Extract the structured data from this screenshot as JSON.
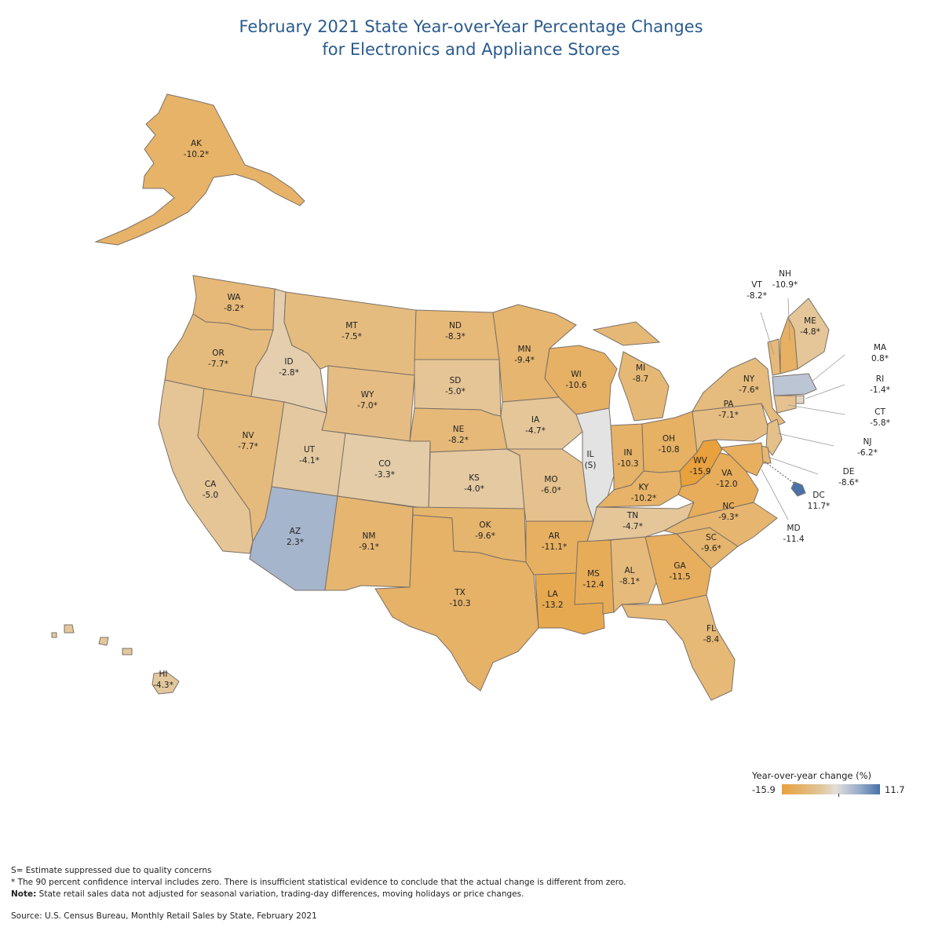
{
  "title_line1": "February 2021 State Year-over-Year Percentage Changes",
  "title_line2": "for Electronics and Appliance Stores",
  "legend": {
    "title": "Year-over-year change (%)",
    "min": "-15.9",
    "max": "11.7",
    "min_color": "#e8a13c",
    "mid_color": "#e2dfd8",
    "max_color": "#4a72a8"
  },
  "states": [
    {
      "abbr": "AK",
      "value": "-10.2*"
    },
    {
      "abbr": "WA",
      "value": "-8.2*"
    },
    {
      "abbr": "OR",
      "value": "-7.7*"
    },
    {
      "abbr": "CA",
      "value": "-5.0"
    },
    {
      "abbr": "NV",
      "value": "-7.7*"
    },
    {
      "abbr": "ID",
      "value": "-2.8*"
    },
    {
      "abbr": "MT",
      "value": "-7.5*"
    },
    {
      "abbr": "WY",
      "value": "-7.0*"
    },
    {
      "abbr": "UT",
      "value": "-4.1*"
    },
    {
      "abbr": "CO",
      "value": "-3.3*"
    },
    {
      "abbr": "AZ",
      "value": "2.3*"
    },
    {
      "abbr": "NM",
      "value": "-9.1*"
    },
    {
      "abbr": "ND",
      "value": "-8.3*"
    },
    {
      "abbr": "SD",
      "value": "-5.0*"
    },
    {
      "abbr": "NE",
      "value": "-8.2*"
    },
    {
      "abbr": "KS",
      "value": "-4.0*"
    },
    {
      "abbr": "OK",
      "value": "-9.6*"
    },
    {
      "abbr": "TX",
      "value": "-10.3"
    },
    {
      "abbr": "MN",
      "value": "-9.4*"
    },
    {
      "abbr": "IA",
      "value": "-4.7*"
    },
    {
      "abbr": "MO",
      "value": "-6.0*"
    },
    {
      "abbr": "AR",
      "value": "-11.1*"
    },
    {
      "abbr": "LA",
      "value": "-13.2"
    },
    {
      "abbr": "WI",
      "value": "-10.6"
    },
    {
      "abbr": "IL",
      "value": "(S)"
    },
    {
      "abbr": "MI",
      "value": "-8.7"
    },
    {
      "abbr": "IN",
      "value": "-10.3"
    },
    {
      "abbr": "OH",
      "value": "-10.8"
    },
    {
      "abbr": "KY",
      "value": "-10.2*"
    },
    {
      "abbr": "TN",
      "value": "-4.7*"
    },
    {
      "abbr": "MS",
      "value": "-12.4"
    },
    {
      "abbr": "AL",
      "value": "-8.1*"
    },
    {
      "abbr": "GA",
      "value": "-11.5"
    },
    {
      "abbr": "FL",
      "value": "-8.4"
    },
    {
      "abbr": "SC",
      "value": "-9.6*"
    },
    {
      "abbr": "NC",
      "value": "-9.3*"
    },
    {
      "abbr": "VA",
      "value": "-12.0"
    },
    {
      "abbr": "WV",
      "value": "-15.9"
    },
    {
      "abbr": "PA",
      "value": "-7.1*"
    },
    {
      "abbr": "NY",
      "value": "-7.6*"
    },
    {
      "abbr": "VT",
      "value": "-8.2*"
    },
    {
      "abbr": "NH",
      "value": "-10.9*"
    },
    {
      "abbr": "ME",
      "value": "-4.8*"
    },
    {
      "abbr": "MA",
      "value": "0.8*"
    },
    {
      "abbr": "RI",
      "value": "-1.4*"
    },
    {
      "abbr": "CT",
      "value": "-5.8*"
    },
    {
      "abbr": "NJ",
      "value": "-6.2*"
    },
    {
      "abbr": "DE",
      "value": "-8.6*"
    },
    {
      "abbr": "MD",
      "value": "-11.4"
    },
    {
      "abbr": "DC",
      "value": "11.7*"
    },
    {
      "abbr": "HI",
      "value": "-4.3*"
    }
  ],
  "notes": {
    "s_note": "S= Estimate suppressed due to quality concerns",
    "star_note": "* The 90 percent confidence interval includes zero. There is insufficient statistical evidence to conclude that the actual change is different from zero.",
    "note_label": "Note:",
    "note_text": " State retail sales data not adjusted for seasonal variation, trading-day differences, moving holidays or price changes.",
    "source": "Source: U.S. Census Bureau, Monthly Retail Sales by State, February 2021"
  }
}
